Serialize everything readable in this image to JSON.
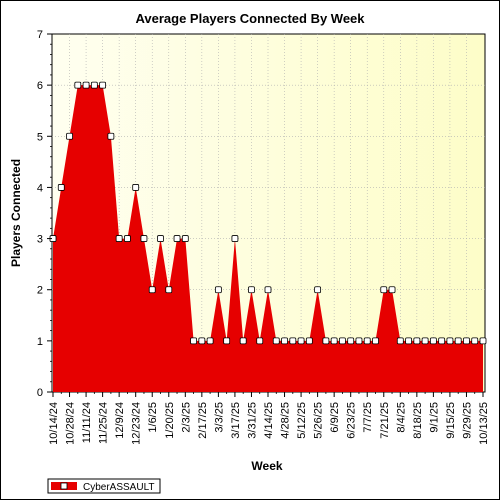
{
  "chart_data": {
    "type": "area",
    "title": "Average Players Connected By Week",
    "xlabel": "Week",
    "ylabel": "Players Connected",
    "ylim": [
      0,
      7
    ],
    "y_ticks": [
      "0",
      "1",
      "2",
      "3",
      "4",
      "5",
      "6",
      "7"
    ],
    "x_tick_labels": [
      "10/14/24",
      "10/28/24",
      "11/11/24",
      "11/25/24",
      "12/9/24",
      "12/23/24",
      "1/6/25",
      "1/20/25",
      "2/3/25",
      "2/17/25",
      "3/3/25",
      "3/17/25",
      "3/31/25",
      "4/14/25",
      "4/28/25",
      "5/12/25",
      "5/26/25",
      "6/9/25",
      "6/23/25",
      "7/7/25",
      "7/21/25",
      "8/4/25",
      "8/18/25",
      "9/1/25",
      "9/15/25",
      "9/29/25",
      "10/13/25"
    ],
    "grid": true,
    "legend_position": "bottom-left",
    "series": [
      {
        "name": "CyberASSAULT",
        "color": "#e60000",
        "x": [
          "10/14/24",
          "10/21/24",
          "10/28/24",
          "11/4/24",
          "11/11/24",
          "11/18/24",
          "11/25/24",
          "12/2/24",
          "12/9/24",
          "12/16/24",
          "12/23/24",
          "12/30/24",
          "1/6/25",
          "1/13/25",
          "1/20/25",
          "1/27/25",
          "2/3/25",
          "2/10/25",
          "2/17/25",
          "2/24/25",
          "3/3/25",
          "3/10/25",
          "3/17/25",
          "3/24/25",
          "3/31/25",
          "4/7/25",
          "4/14/25",
          "4/21/25",
          "4/28/25",
          "5/5/25",
          "5/12/25",
          "5/19/25",
          "5/26/25",
          "6/2/25",
          "6/9/25",
          "6/16/25",
          "6/23/25",
          "6/30/25",
          "7/7/25",
          "7/14/25",
          "7/21/25",
          "7/28/25",
          "8/4/25",
          "8/11/25",
          "8/18/25",
          "8/25/25",
          "9/1/25",
          "9/8/25",
          "9/15/25",
          "9/22/25",
          "9/29/25",
          "10/6/25",
          "10/13/25"
        ],
        "values": [
          3,
          4,
          5,
          6,
          6,
          6,
          6,
          5,
          3,
          3,
          4,
          3,
          2,
          3,
          2,
          3,
          3,
          1,
          1,
          1,
          2,
          1,
          3,
          1,
          2,
          1,
          2,
          1,
          1,
          1,
          1,
          1,
          2,
          1,
          1,
          1,
          1,
          1,
          1,
          1,
          2,
          2,
          1,
          1,
          1,
          1,
          1,
          1,
          1,
          1,
          1,
          1,
          1
        ]
      }
    ]
  },
  "colors": {
    "plot_bg_left": "#fffff0",
    "plot_bg_right": "#fdfdc8",
    "series_fill": "#e60000",
    "marker_fill": "#ffffff"
  }
}
